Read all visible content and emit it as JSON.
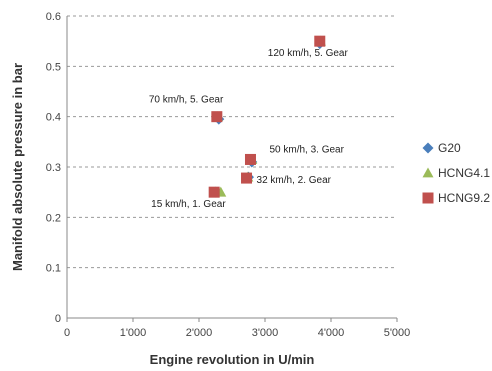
{
  "chart_data": {
    "type": "scatter",
    "xlabel": "Engine revolution in U/min",
    "ylabel": "Manifold absolute pressure in bar",
    "xlim": [
      0,
      5000
    ],
    "ylim": [
      0,
      0.6
    ],
    "x_ticks": [
      0,
      1000,
      2000,
      3000,
      4000,
      5000
    ],
    "x_tick_labels": [
      "0",
      "1'000",
      "2'000",
      "3'000",
      "4'000",
      "5'000"
    ],
    "y_ticks": [
      0,
      0.1,
      0.2,
      0.3,
      0.4,
      0.5,
      0.6
    ],
    "y_tick_labels": [
      "0",
      "0.1",
      "0.2",
      "0.3",
      "0.4",
      "0.5",
      "0.6"
    ],
    "grid": "horizontal dashed",
    "legend_position": "right",
    "series": [
      {
        "name": "G20",
        "marker": "diamond",
        "color": "#4a7ebb",
        "points": [
          {
            "x": 2250,
            "y": 0.25
          },
          {
            "x": 2300,
            "y": 0.395
          },
          {
            "x": 2750,
            "y": 0.28
          },
          {
            "x": 2800,
            "y": 0.31
          },
          {
            "x": 3830,
            "y": 0.545
          }
        ]
      },
      {
        "name": "HCNG4.1",
        "marker": "triangle",
        "color": "#9bbb59",
        "points": [
          {
            "x": 2330,
            "y": 0.25
          },
          {
            "x": 2280,
            "y": 0.4
          },
          {
            "x": 2740,
            "y": 0.28
          },
          {
            "x": 2800,
            "y": 0.315
          },
          {
            "x": 3840,
            "y": 0.55
          }
        ]
      },
      {
        "name": "HCNG9.2",
        "marker": "square",
        "color": "#c0504d",
        "points": [
          {
            "x": 2230,
            "y": 0.25
          },
          {
            "x": 2270,
            "y": 0.4
          },
          {
            "x": 2720,
            "y": 0.278
          },
          {
            "x": 2780,
            "y": 0.315
          },
          {
            "x": 3830,
            "y": 0.55
          }
        ]
      }
    ],
    "annotations": [
      {
        "text": "120 km/h, 5. Gear",
        "x": 3830,
        "y": 0.55
      },
      {
        "text": "70 km/h, 5. Gear",
        "x": 2270,
        "y": 0.4
      },
      {
        "text": "50 km/h, 3. Gear",
        "x": 2780,
        "y": 0.315
      },
      {
        "text": "32 km/h, 2. Gear",
        "x": 2720,
        "y": 0.278
      },
      {
        "text": "15 km/h, 1. Gear",
        "x": 2230,
        "y": 0.25
      }
    ]
  }
}
